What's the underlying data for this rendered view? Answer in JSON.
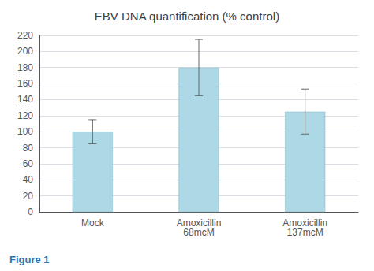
{
  "chart_data": {
    "type": "bar",
    "title": "EBV DNA quantification (% control)",
    "categories": [
      "Mock",
      "Amoxicillin\n68mcM",
      "Amoxicillin\n137mcM"
    ],
    "values": [
      100,
      180,
      125
    ],
    "errors": [
      15,
      35,
      28
    ],
    "color": "#add8e6",
    "ylim": [
      0,
      220
    ],
    "yticks": [
      0,
      20,
      40,
      60,
      80,
      100,
      120,
      140,
      160,
      180,
      200,
      220
    ],
    "grid": true,
    "annotations": [
      "Figure 1"
    ]
  }
}
